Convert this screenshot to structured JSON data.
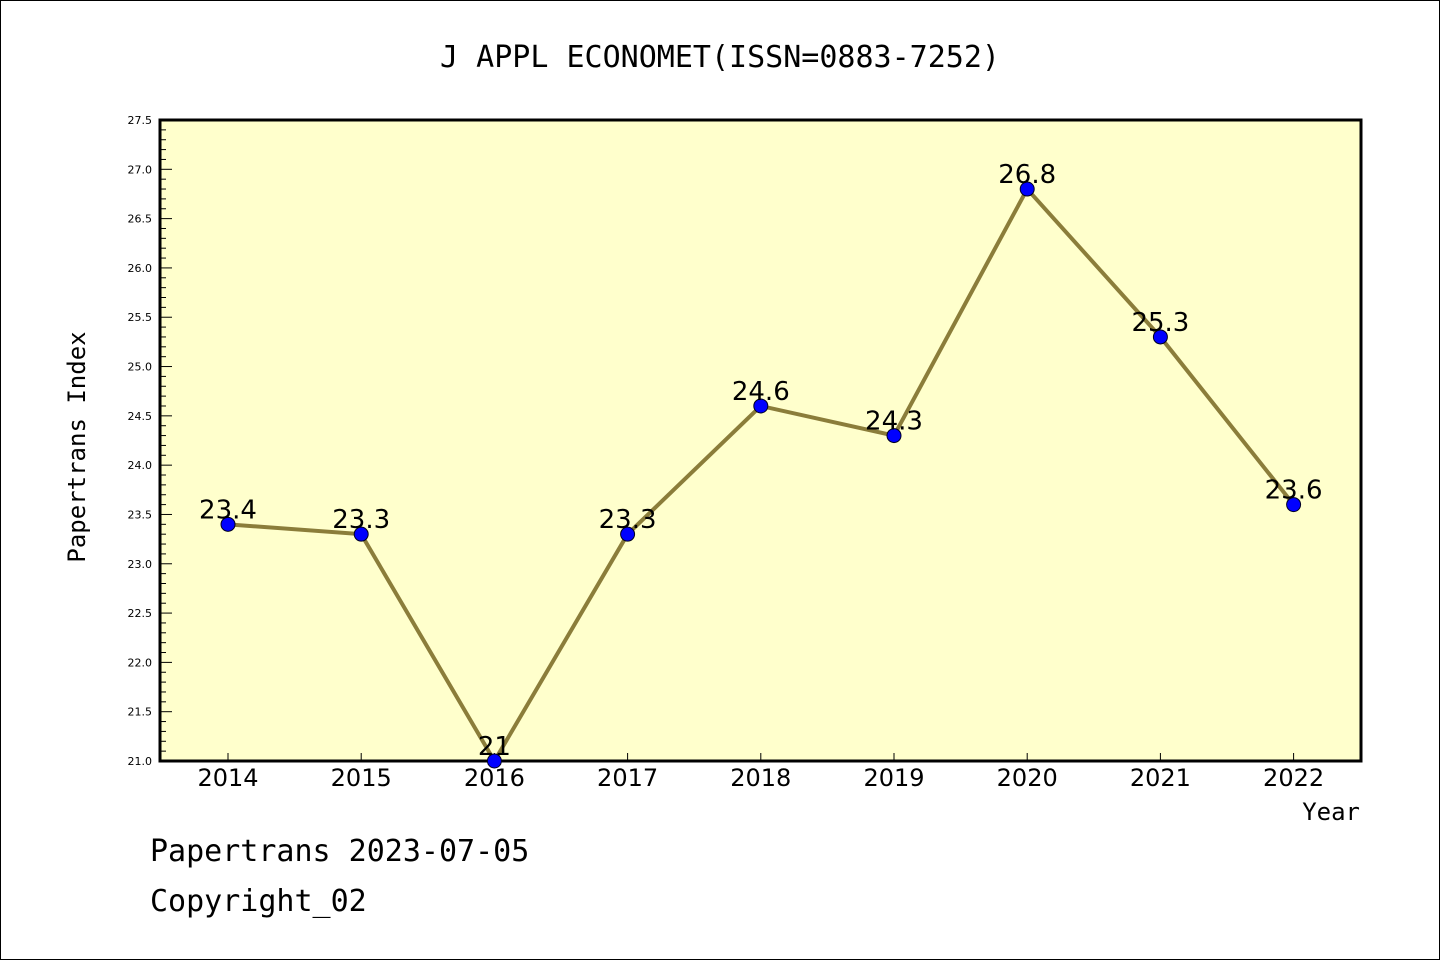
{
  "chart_data": {
    "type": "line",
    "title": "J APPL ECONOMET(ISSN=0883-7252)",
    "xlabel": "Year",
    "ylabel": "Papertrans Index",
    "categories": [
      "2014",
      "2015",
      "2016",
      "2017",
      "2018",
      "2019",
      "2020",
      "2021",
      "2022"
    ],
    "series": [
      {
        "values": [
          23.4,
          23.3,
          21,
          23.3,
          24.6,
          24.3,
          26.8,
          25.3,
          23.6
        ],
        "labels": [
          "23.4",
          "23.3",
          "21",
          "23.3",
          "24.6",
          "24.3",
          "26.8",
          "25.3",
          "23.6"
        ]
      }
    ],
    "ylim": [
      21.0,
      27.5
    ],
    "yticks": [
      "21.0",
      "21.5",
      "22.0",
      "22.5",
      "23.0",
      "23.5",
      "24.0",
      "24.5",
      "25.0",
      "25.5",
      "26.0",
      "26.5",
      "27.0",
      "27.5"
    ],
    "grid": false,
    "legend": "none",
    "colors": {
      "plot_background": "#ffffcc",
      "line": "#8b7d3a",
      "marker": "#0000ff"
    }
  },
  "footer": {
    "line1": "Papertrans 2023-07-05",
    "line2": "Copyright_02"
  }
}
